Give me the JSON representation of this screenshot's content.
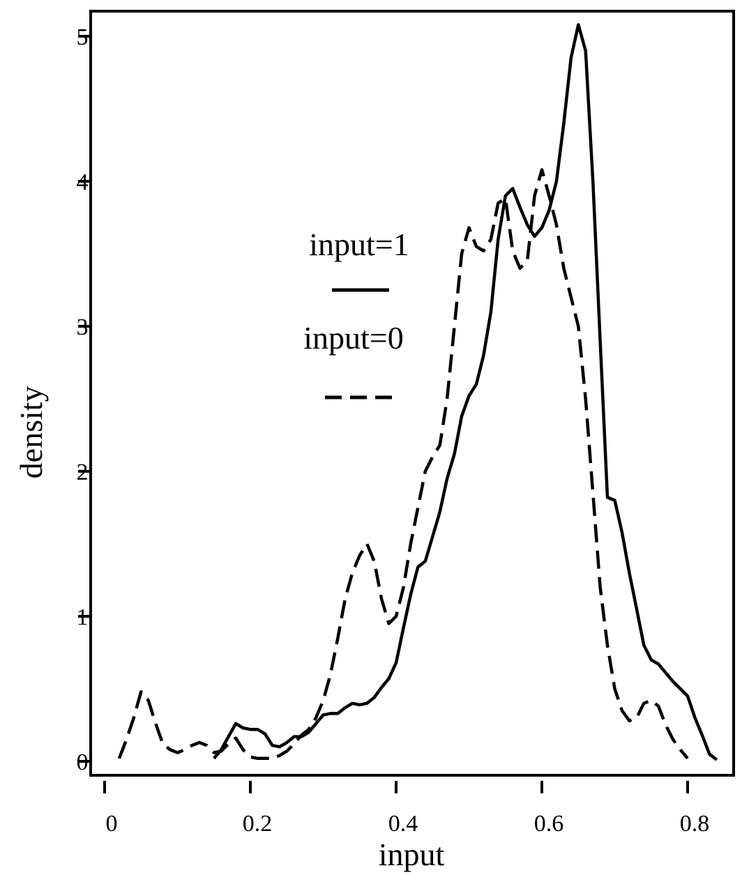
{
  "chart_data": {
    "type": "line",
    "title": "",
    "xlabel": "input",
    "ylabel": "density",
    "xlim": [
      -0.02,
      0.85
    ],
    "ylim": [
      -0.1,
      5.2
    ],
    "x_ticks": [
      "0",
      "0.2",
      "0.4",
      "0.6",
      "0.8"
    ],
    "x_tick_values": [
      0,
      0.2,
      0.4,
      0.6,
      0.8
    ],
    "y_ticks": [
      "0",
      "1",
      "2",
      "3",
      "4",
      "5"
    ],
    "y_tick_values": [
      0,
      1,
      2,
      3,
      4,
      5
    ],
    "grid": false,
    "legend_placement": "center",
    "series": [
      {
        "name": "input=1",
        "style": "solid",
        "color": "#000000",
        "x": [
          0.15,
          0.16,
          0.17,
          0.18,
          0.19,
          0.2,
          0.21,
          0.22,
          0.23,
          0.24,
          0.25,
          0.26,
          0.27,
          0.28,
          0.29,
          0.3,
          0.31,
          0.32,
          0.33,
          0.34,
          0.35,
          0.36,
          0.37,
          0.38,
          0.39,
          0.4,
          0.41,
          0.42,
          0.43,
          0.44,
          0.45,
          0.46,
          0.47,
          0.48,
          0.49,
          0.5,
          0.51,
          0.52,
          0.53,
          0.54,
          0.55,
          0.56,
          0.57,
          0.58,
          0.59,
          0.6,
          0.61,
          0.62,
          0.63,
          0.64,
          0.65,
          0.66,
          0.67,
          0.68,
          0.69,
          0.7,
          0.71,
          0.72,
          0.73,
          0.74,
          0.75,
          0.76,
          0.77,
          0.78,
          0.79,
          0.8,
          0.81,
          0.82,
          0.83,
          0.84
        ],
        "y": [
          0.02,
          0.08,
          0.17,
          0.26,
          0.23,
          0.22,
          0.22,
          0.19,
          0.11,
          0.1,
          0.13,
          0.17,
          0.17,
          0.2,
          0.26,
          0.32,
          0.33,
          0.33,
          0.37,
          0.4,
          0.39,
          0.4,
          0.44,
          0.51,
          0.57,
          0.68,
          0.92,
          1.15,
          1.34,
          1.38,
          1.55,
          1.72,
          1.95,
          2.12,
          2.38,
          2.52,
          2.6,
          2.8,
          3.1,
          3.6,
          3.9,
          3.95,
          3.82,
          3.7,
          3.62,
          3.68,
          3.8,
          4.0,
          4.4,
          4.85,
          5.08,
          4.9,
          4.0,
          2.9,
          1.82,
          1.8,
          1.58,
          1.3,
          1.05,
          0.8,
          0.7,
          0.67,
          0.61,
          0.55,
          0.5,
          0.45,
          0.3,
          0.18,
          0.05,
          0.01
        ]
      },
      {
        "name": "input=0",
        "style": "dashed",
        "color": "#000000",
        "x": [
          0.02,
          0.03,
          0.04,
          0.05,
          0.06,
          0.07,
          0.08,
          0.09,
          0.1,
          0.11,
          0.12,
          0.13,
          0.14,
          0.15,
          0.16,
          0.17,
          0.18,
          0.19,
          0.2,
          0.21,
          0.22,
          0.23,
          0.24,
          0.25,
          0.26,
          0.27,
          0.28,
          0.29,
          0.3,
          0.31,
          0.32,
          0.33,
          0.34,
          0.35,
          0.36,
          0.37,
          0.38,
          0.39,
          0.4,
          0.41,
          0.42,
          0.43,
          0.44,
          0.45,
          0.46,
          0.47,
          0.48,
          0.49,
          0.5,
          0.51,
          0.52,
          0.53,
          0.54,
          0.55,
          0.56,
          0.57,
          0.58,
          0.59,
          0.6,
          0.61,
          0.62,
          0.63,
          0.64,
          0.65,
          0.66,
          0.67,
          0.68,
          0.69,
          0.7,
          0.71,
          0.72,
          0.73,
          0.74,
          0.75,
          0.76,
          0.77,
          0.78,
          0.79,
          0.8
        ],
        "y": [
          0.02,
          0.15,
          0.3,
          0.48,
          0.42,
          0.26,
          0.12,
          0.08,
          0.06,
          0.08,
          0.11,
          0.13,
          0.11,
          0.06,
          0.07,
          0.12,
          0.16,
          0.08,
          0.03,
          0.02,
          0.02,
          0.02,
          0.04,
          0.07,
          0.12,
          0.18,
          0.22,
          0.3,
          0.42,
          0.6,
          0.85,
          1.12,
          1.3,
          1.42,
          1.5,
          1.38,
          1.12,
          0.95,
          1.0,
          1.2,
          1.5,
          1.75,
          2.0,
          2.1,
          2.18,
          2.5,
          3.0,
          3.5,
          3.68,
          3.55,
          3.52,
          3.6,
          3.85,
          3.88,
          3.52,
          3.4,
          3.45,
          3.9,
          4.08,
          3.9,
          3.7,
          3.4,
          3.2,
          3.0,
          2.5,
          1.85,
          1.2,
          0.8,
          0.5,
          0.35,
          0.28,
          0.3,
          0.4,
          0.42,
          0.38,
          0.25,
          0.15,
          0.08,
          0.02
        ]
      }
    ]
  }
}
